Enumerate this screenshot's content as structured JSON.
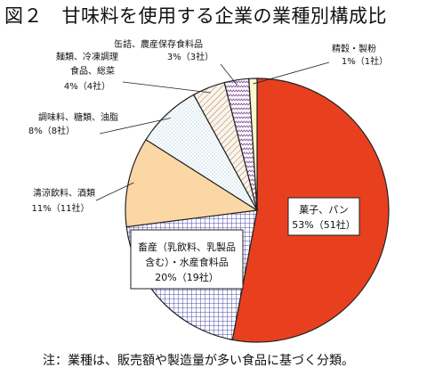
{
  "title": "図２　甘味料を使用する企業の業種別構成比",
  "note": "注：業種は、販売額や製造量が多い食品に基づく分類。",
  "colors": {
    "confectionery": "#e8401f",
    "outline": "#222222"
  },
  "chart_data": {
    "type": "pie",
    "start": "top",
    "direction": "clockwise",
    "slices": [
      {
        "id": "s1",
        "label_lines": [
          "菓子、パン",
          "53%（51社）"
        ],
        "percent": 53,
        "companies": 51,
        "fill": "solid-red"
      },
      {
        "id": "s2",
        "label_lines": [
          "畜産（乳飲料、乳製品",
          "含む）・水産食料品",
          "20%（19社）"
        ],
        "percent": 20,
        "companies": 19,
        "fill": "blue-grid"
      },
      {
        "id": "s3",
        "label_lines": [
          "清涼飲料、酒類",
          "11%（11社）"
        ],
        "percent": 11,
        "companies": 11,
        "fill": "tan"
      },
      {
        "id": "s4",
        "label_lines": [
          "調味料、糖類、油脂",
          "8%（8社）"
        ],
        "percent": 8,
        "companies": 8,
        "fill": "dots"
      },
      {
        "id": "s5",
        "label_lines": [
          "麺類、冷凍調理",
          "食品、総菜",
          "4%（4社）"
        ],
        "percent": 4,
        "companies": 4,
        "fill": "diagonal-brown"
      },
      {
        "id": "s6",
        "label_lines": [
          "缶詰、農産保存食料品",
          "3%（3社）"
        ],
        "percent": 3,
        "companies": 3,
        "fill": "zigzag-purple"
      },
      {
        "id": "s7",
        "label_lines": [
          "精穀・製粉",
          "1%（1社）"
        ],
        "percent": 1,
        "companies": 1,
        "fill": "pale-yellow"
      }
    ]
  }
}
